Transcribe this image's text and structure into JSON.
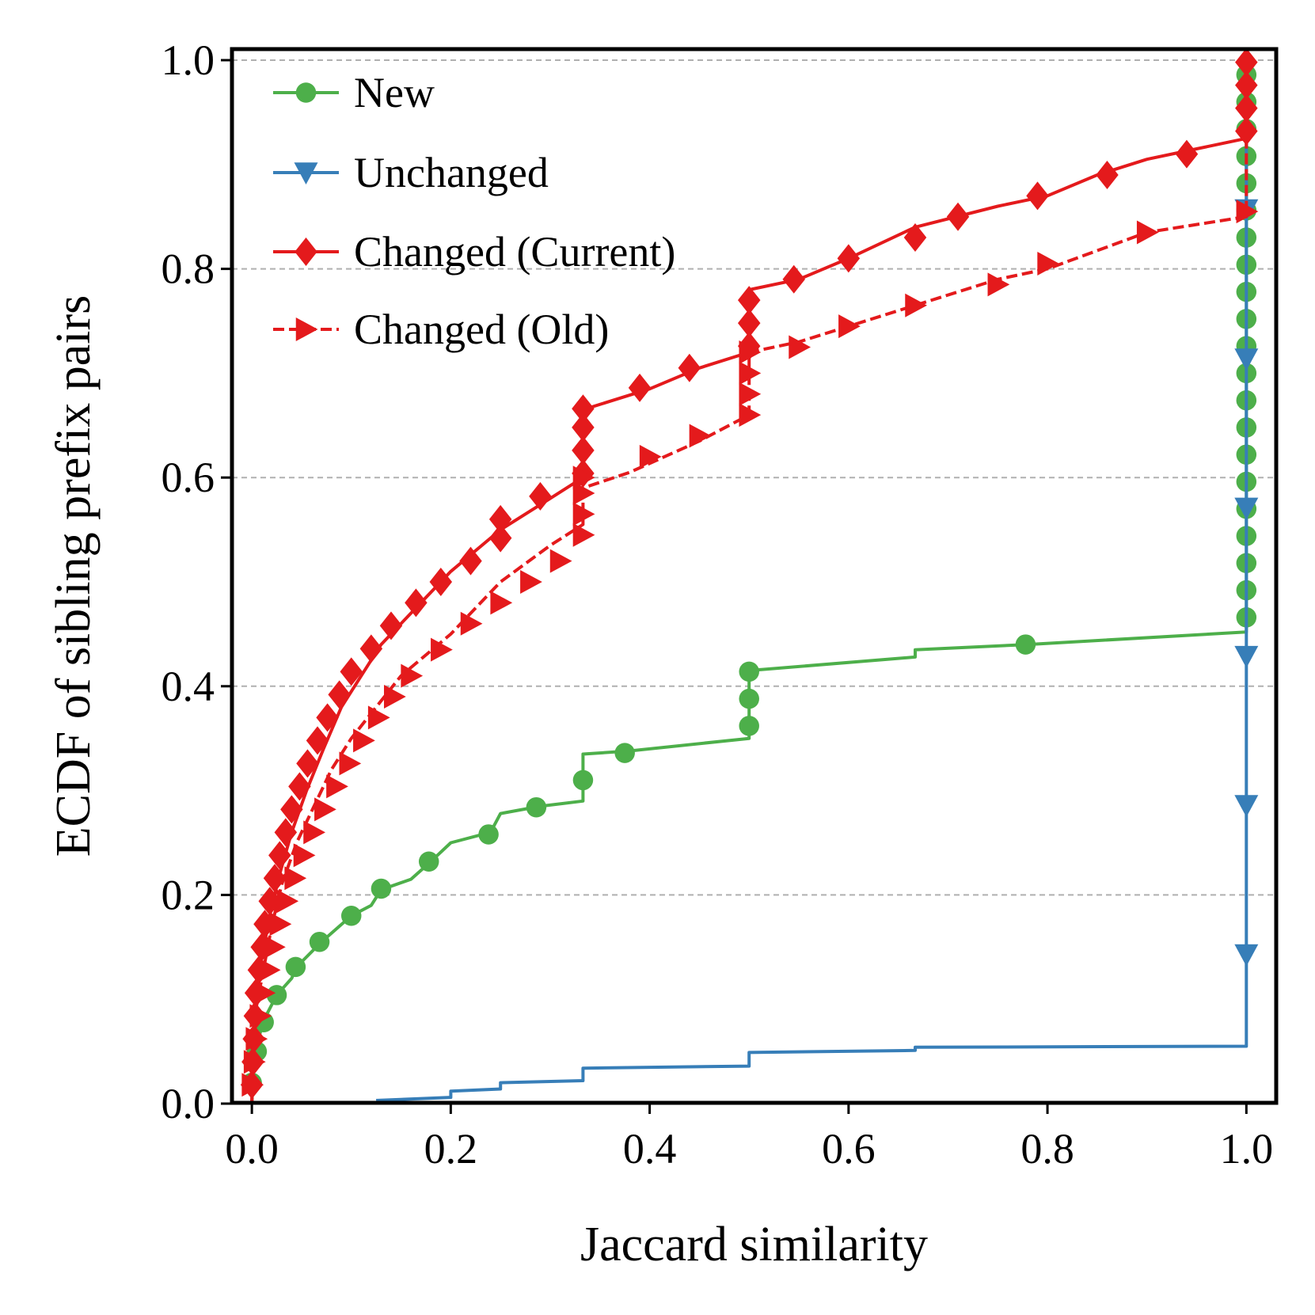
{
  "chart_data": {
    "type": "line",
    "xlabel": "Jaccard similarity",
    "ylabel": "ECDF of sibling prefix pairs",
    "xlim": [
      -0.02,
      1.03
    ],
    "ylim": [
      0.0,
      1.0
    ],
    "xticks": [
      0.0,
      0.2,
      0.4,
      0.6,
      0.8,
      1.0
    ],
    "xtick_labels": [
      "0.0",
      "0.2",
      "0.4",
      "0.6",
      "0.8",
      "1.0"
    ],
    "yticks": [
      0.0,
      0.2,
      0.4,
      0.6,
      0.8,
      1.0
    ],
    "ytick_labels": [
      "0.0",
      "0.2",
      "0.4",
      "0.6",
      "0.8",
      "1.0"
    ],
    "grid": "horizontal dashed",
    "legend_position": "top-left",
    "series": [
      {
        "name": "New",
        "color": "#4daf4a",
        "marker": "circle",
        "dashed": false,
        "line": [
          [
            0.0,
            0.0
          ],
          [
            0.002,
            0.04
          ],
          [
            0.006,
            0.06
          ],
          [
            0.012,
            0.08
          ],
          [
            0.025,
            0.104
          ],
          [
            0.04,
            0.12
          ],
          [
            0.045,
            0.131
          ],
          [
            0.07,
            0.155
          ],
          [
            0.1,
            0.18
          ],
          [
            0.12,
            0.19
          ],
          [
            0.13,
            0.205
          ],
          [
            0.16,
            0.215
          ],
          [
            0.18,
            0.232
          ],
          [
            0.2,
            0.25
          ],
          [
            0.24,
            0.26
          ],
          [
            0.25,
            0.278
          ],
          [
            0.29,
            0.285
          ],
          [
            0.333,
            0.29
          ],
          [
            0.333,
            0.311
          ],
          [
            0.333,
            0.335
          ],
          [
            0.38,
            0.338
          ],
          [
            0.5,
            0.35
          ],
          [
            0.5,
            0.415
          ],
          [
            0.667,
            0.428
          ],
          [
            0.667,
            0.435
          ],
          [
            0.78,
            0.44
          ],
          [
            1.0,
            0.452
          ],
          [
            1.0,
            1.0
          ]
        ],
        "markers": [
          [
            0.0,
            0.02
          ],
          [
            0.005,
            0.05
          ],
          [
            0.012,
            0.078
          ],
          [
            0.025,
            0.104
          ],
          [
            0.044,
            0.131
          ],
          [
            0.068,
            0.155
          ],
          [
            0.1,
            0.18
          ],
          [
            0.13,
            0.206
          ],
          [
            0.178,
            0.232
          ],
          [
            0.238,
            0.258
          ],
          [
            0.286,
            0.284
          ],
          [
            0.333,
            0.31
          ],
          [
            0.375,
            0.336
          ],
          [
            0.5,
            0.362
          ],
          [
            0.5,
            0.388
          ],
          [
            0.5,
            0.414
          ],
          [
            0.778,
            0.44
          ],
          [
            1.0,
            0.466
          ],
          [
            1.0,
            0.492
          ],
          [
            1.0,
            0.518
          ],
          [
            1.0,
            0.544
          ],
          [
            1.0,
            0.57
          ],
          [
            1.0,
            0.596
          ],
          [
            1.0,
            0.622
          ],
          [
            1.0,
            0.648
          ],
          [
            1.0,
            0.674
          ],
          [
            1.0,
            0.7
          ],
          [
            1.0,
            0.726
          ],
          [
            1.0,
            0.752
          ],
          [
            1.0,
            0.778
          ],
          [
            1.0,
            0.804
          ],
          [
            1.0,
            0.83
          ],
          [
            1.0,
            0.856
          ],
          [
            1.0,
            0.882
          ],
          [
            1.0,
            0.908
          ],
          [
            1.0,
            0.934
          ],
          [
            1.0,
            0.96
          ],
          [
            1.0,
            0.986
          ]
        ]
      },
      {
        "name": "Unchanged",
        "color": "#377eb8",
        "marker": "triangle-down",
        "dashed": false,
        "line": [
          [
            0.125,
            0.003
          ],
          [
            0.2,
            0.006
          ],
          [
            0.2,
            0.012
          ],
          [
            0.25,
            0.014
          ],
          [
            0.25,
            0.02
          ],
          [
            0.333,
            0.022
          ],
          [
            0.333,
            0.034
          ],
          [
            0.5,
            0.036
          ],
          [
            0.5,
            0.049
          ],
          [
            0.667,
            0.051
          ],
          [
            0.667,
            0.054
          ],
          [
            1.0,
            0.055
          ],
          [
            1.0,
            1.0
          ]
        ],
        "markers": [
          [
            1.0,
            0.143
          ],
          [
            1.0,
            0.286
          ],
          [
            1.0,
            0.429
          ],
          [
            1.0,
            0.571
          ],
          [
            1.0,
            0.714
          ],
          [
            1.0,
            0.857
          ]
        ]
      },
      {
        "name": "Changed (Current)",
        "color": "#e41a1c",
        "marker": "diamond",
        "dashed": false,
        "line": [
          [
            0.0,
            0.0
          ],
          [
            0.001,
            0.05
          ],
          [
            0.003,
            0.09
          ],
          [
            0.01,
            0.14
          ],
          [
            0.018,
            0.18
          ],
          [
            0.028,
            0.22
          ],
          [
            0.04,
            0.26
          ],
          [
            0.055,
            0.3
          ],
          [
            0.072,
            0.34
          ],
          [
            0.09,
            0.38
          ],
          [
            0.11,
            0.41
          ],
          [
            0.13,
            0.44
          ],
          [
            0.16,
            0.47
          ],
          [
            0.2,
            0.51
          ],
          [
            0.25,
            0.55
          ],
          [
            0.3,
            0.58
          ],
          [
            0.333,
            0.6
          ],
          [
            0.333,
            0.665
          ],
          [
            0.4,
            0.685
          ],
          [
            0.45,
            0.705
          ],
          [
            0.5,
            0.72
          ],
          [
            0.5,
            0.78
          ],
          [
            0.55,
            0.79
          ],
          [
            0.6,
            0.81
          ],
          [
            0.667,
            0.84
          ],
          [
            0.75,
            0.86
          ],
          [
            0.8,
            0.87
          ],
          [
            0.85,
            0.89
          ],
          [
            0.9,
            0.905
          ],
          [
            0.95,
            0.915
          ],
          [
            1.0,
            0.925
          ],
          [
            1.0,
            1.0
          ]
        ],
        "markers": [
          [
            0.0,
            0.018
          ],
          [
            0.001,
            0.04
          ],
          [
            0.002,
            0.062
          ],
          [
            0.003,
            0.084
          ],
          [
            0.004,
            0.106
          ],
          [
            0.007,
            0.128
          ],
          [
            0.01,
            0.15
          ],
          [
            0.013,
            0.172
          ],
          [
            0.018,
            0.194
          ],
          [
            0.023,
            0.216
          ],
          [
            0.028,
            0.238
          ],
          [
            0.034,
            0.26
          ],
          [
            0.04,
            0.282
          ],
          [
            0.048,
            0.304
          ],
          [
            0.056,
            0.326
          ],
          [
            0.066,
            0.348
          ],
          [
            0.076,
            0.37
          ],
          [
            0.088,
            0.392
          ],
          [
            0.1,
            0.414
          ],
          [
            0.12,
            0.436
          ],
          [
            0.14,
            0.458
          ],
          [
            0.165,
            0.48
          ],
          [
            0.19,
            0.5
          ],
          [
            0.22,
            0.52
          ],
          [
            0.25,
            0.542
          ],
          [
            0.25,
            0.56
          ],
          [
            0.29,
            0.582
          ],
          [
            0.333,
            0.604
          ],
          [
            0.333,
            0.626
          ],
          [
            0.333,
            0.648
          ],
          [
            0.333,
            0.666
          ],
          [
            0.39,
            0.686
          ],
          [
            0.44,
            0.705
          ],
          [
            0.5,
            0.726
          ],
          [
            0.5,
            0.748
          ],
          [
            0.5,
            0.77
          ],
          [
            0.545,
            0.79
          ],
          [
            0.6,
            0.81
          ],
          [
            0.667,
            0.83
          ],
          [
            0.71,
            0.85
          ],
          [
            0.79,
            0.87
          ],
          [
            0.86,
            0.89
          ],
          [
            0.94,
            0.91
          ],
          [
            1.0,
            0.932
          ],
          [
            1.0,
            0.954
          ],
          [
            1.0,
            0.976
          ],
          [
            1.0,
            0.998
          ]
        ]
      },
      {
        "name": "Changed (Old)",
        "color": "#e41a1c",
        "marker": "triangle-right",
        "dashed": true,
        "line": [
          [
            0.0,
            0.0
          ],
          [
            0.001,
            0.05
          ],
          [
            0.004,
            0.09
          ],
          [
            0.012,
            0.13
          ],
          [
            0.02,
            0.17
          ],
          [
            0.03,
            0.21
          ],
          [
            0.045,
            0.25
          ],
          [
            0.06,
            0.28
          ],
          [
            0.08,
            0.32
          ],
          [
            0.1,
            0.35
          ],
          [
            0.125,
            0.38
          ],
          [
            0.15,
            0.41
          ],
          [
            0.2,
            0.45
          ],
          [
            0.25,
            0.5
          ],
          [
            0.3,
            0.535
          ],
          [
            0.333,
            0.555
          ],
          [
            0.333,
            0.59
          ],
          [
            0.38,
            0.605
          ],
          [
            0.45,
            0.635
          ],
          [
            0.5,
            0.66
          ],
          [
            0.5,
            0.72
          ],
          [
            0.55,
            0.73
          ],
          [
            0.6,
            0.745
          ],
          [
            0.667,
            0.765
          ],
          [
            0.75,
            0.79
          ],
          [
            0.8,
            0.8
          ],
          [
            0.9,
            0.835
          ],
          [
            1.0,
            0.85
          ],
          [
            1.0,
            1.0
          ]
        ],
        "markers": [
          [
            0.0,
            0.018
          ],
          [
            0.002,
            0.04
          ],
          [
            0.004,
            0.062
          ],
          [
            0.008,
            0.084
          ],
          [
            0.012,
            0.106
          ],
          [
            0.017,
            0.128
          ],
          [
            0.022,
            0.15
          ],
          [
            0.028,
            0.172
          ],
          [
            0.035,
            0.194
          ],
          [
            0.043,
            0.216
          ],
          [
            0.052,
            0.238
          ],
          [
            0.062,
            0.26
          ],
          [
            0.073,
            0.282
          ],
          [
            0.085,
            0.304
          ],
          [
            0.098,
            0.326
          ],
          [
            0.112,
            0.348
          ],
          [
            0.127,
            0.37
          ],
          [
            0.143,
            0.39
          ],
          [
            0.16,
            0.41
          ],
          [
            0.19,
            0.435
          ],
          [
            0.22,
            0.46
          ],
          [
            0.25,
            0.48
          ],
          [
            0.28,
            0.5
          ],
          [
            0.31,
            0.52
          ],
          [
            0.333,
            0.545
          ],
          [
            0.333,
            0.565
          ],
          [
            0.333,
            0.585
          ],
          [
            0.333,
            0.6
          ],
          [
            0.4,
            0.62
          ],
          [
            0.45,
            0.64
          ],
          [
            0.5,
            0.66
          ],
          [
            0.5,
            0.68
          ],
          [
            0.5,
            0.7
          ],
          [
            0.5,
            0.72
          ],
          [
            0.55,
            0.725
          ],
          [
            0.6,
            0.745
          ],
          [
            0.667,
            0.765
          ],
          [
            0.75,
            0.785
          ],
          [
            0.8,
            0.805
          ],
          [
            0.9,
            0.835
          ],
          [
            1.0,
            0.855
          ]
        ]
      }
    ]
  }
}
